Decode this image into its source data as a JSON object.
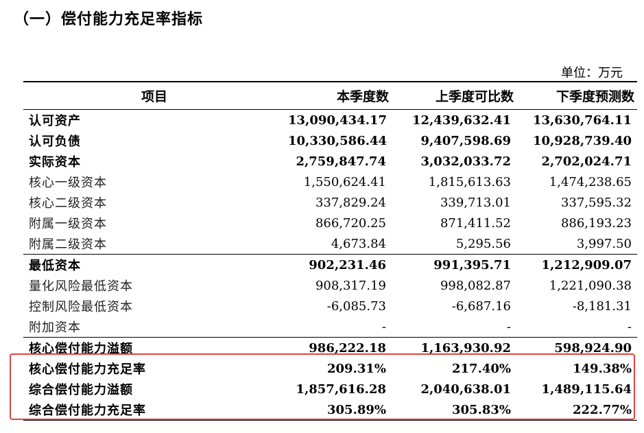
{
  "heading": "（一）偿付能力充足率指标",
  "unit_label": "单位：万元",
  "table": {
    "headers": [
      "项目",
      "本季度数",
      "上季度可比数",
      "下季度预测数"
    ],
    "rows": [
      {
        "label": "认可资产",
        "values": [
          "13,090,434.17",
          "12,439,632.41",
          "13,630,764.11"
        ]
      },
      {
        "label": "认可负债",
        "values": [
          "10,330,586.44",
          "9,407,598.69",
          "10,928,739.40"
        ]
      },
      {
        "label": "实际资本",
        "values": [
          "2,759,847.74",
          "3,032,033.72",
          "2,702,024.71"
        ]
      },
      {
        "label": "核心一级资本",
        "values": [
          "1,550,624.41",
          "1,815,613.63",
          "1,474,238.65"
        ]
      },
      {
        "label": "核心二级资本",
        "values": [
          "337,829.24",
          "339,713.01",
          "337,595.32"
        ]
      },
      {
        "label": "附属一级资本",
        "values": [
          "866,720.25",
          "871,411.52",
          "886,193.23"
        ]
      },
      {
        "label": "附属二级资本",
        "values": [
          "4,673.84",
          "5,295.56",
          "3,997.50"
        ]
      },
      {
        "label": "最低资本",
        "values": [
          "902,231.46",
          "991,395.71",
          "1,212,909.07"
        ]
      },
      {
        "label": "量化风险最低资本",
        "values": [
          "908,317.19",
          "998,082.87",
          "1,221,090.38"
        ]
      },
      {
        "label": "控制风险最低资本",
        "values": [
          "-6,085.73",
          "-6,687.16",
          "-8,181.31"
        ]
      },
      {
        "label": "附加资本",
        "values": [
          "-",
          "-",
          "-"
        ]
      },
      {
        "label": "核心偿付能力溢额",
        "values": [
          "986,222.18",
          "1,163,930.92",
          "598,924.90"
        ]
      },
      {
        "label": "核心偿付能力充足率",
        "values": [
          "209.31%",
          "217.40%",
          "149.38%"
        ]
      },
      {
        "label": "综合偿付能力溢额",
        "values": [
          "1,857,616.28",
          "2,040,638.01",
          "1,489,115.64"
        ]
      },
      {
        "label": "综合偿付能力充足率",
        "values": [
          "305.89%",
          "305.83%",
          "222.77%"
        ]
      }
    ]
  },
  "highlight_color": "#e0443e"
}
